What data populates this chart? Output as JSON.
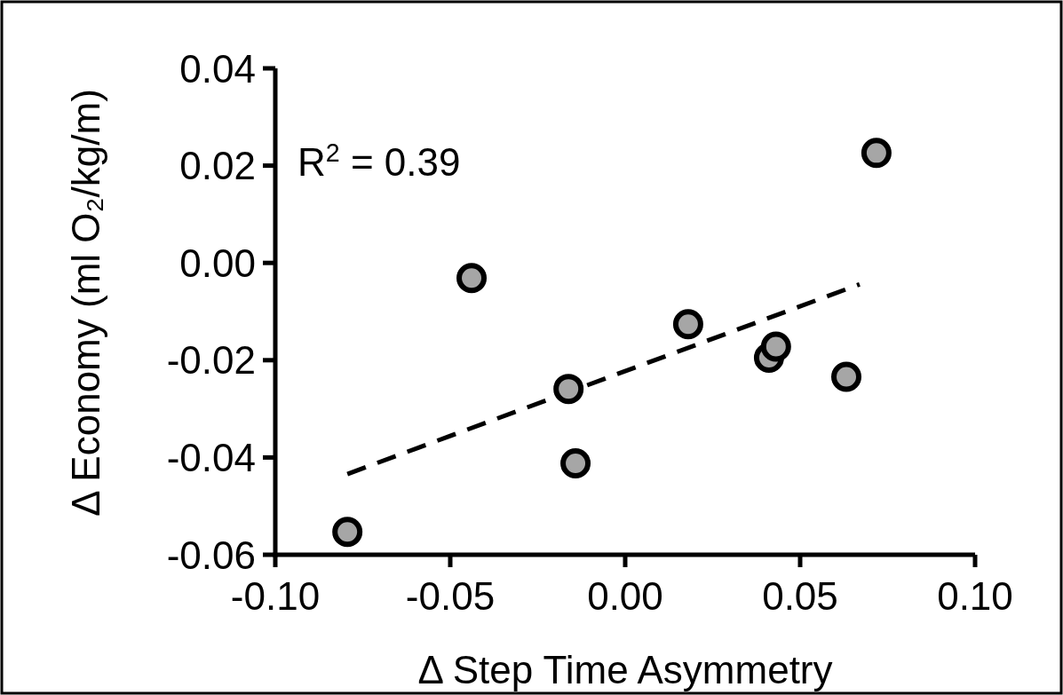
{
  "chart_data": {
    "type": "scatter",
    "xlabel": "Δ Step Time Asymmetry",
    "ylabel": "Δ Economy (ml O₂/kg/m)",
    "annotations": [
      "R$^{2}$ = 0.39"
    ],
    "xlim": [
      -0.1,
      0.1
    ],
    "xticks": [
      {
        "value": -0.1,
        "label": "-0.10"
      },
      {
        "value": -0.05,
        "label": "-0.05"
      },
      {
        "value": 0,
        "label": "0.00"
      },
      {
        "value": 0.05,
        "label": "0.05"
      },
      {
        "value": 0.1,
        "label": "0.10"
      }
    ],
    "ylim": [
      -0.06,
      0.04
    ],
    "yticks": [
      {
        "value": -0.06,
        "label": "-0.06"
      },
      {
        "value": -0.04,
        "label": "-0.04"
      },
      {
        "value": -0.02,
        "label": "-0.02"
      },
      {
        "value": 0,
        "label": "0.00"
      },
      {
        "value": 0.02,
        "label": "0.02"
      },
      {
        "value": 0.04,
        "label": "0.04"
      }
    ],
    "grid": false,
    "series": [
      {
        "marker": "circle",
        "color": "#a6a6a6",
        "x": [
          -0.0794,
          -0.0439,
          -0.0162,
          -0.0142,
          0.018,
          0.0411,
          0.0431,
          0.0632,
          0.0718
        ],
        "values": [
          -0.0553,
          -0.0031,
          -0.0259,
          -0.0412,
          -0.0126,
          -0.0195,
          -0.0172,
          -0.0234,
          0.0226
        ]
      },
      {
        "type": "line",
        "color": "#000000",
        "line_style": "dashed",
        "x": [
          -0.0794,
          0.067
        ],
        "values": [
          -0.0434,
          -0.0044
        ]
      }
    ]
  }
}
